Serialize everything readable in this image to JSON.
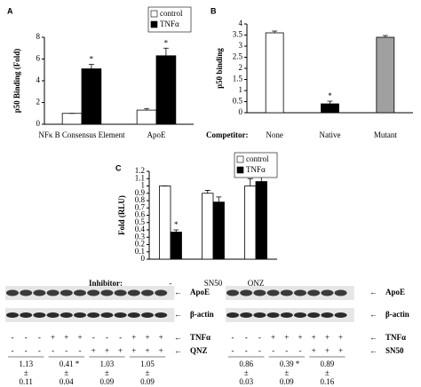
{
  "chart_data": [
    {
      "type": "bar",
      "label": "A",
      "ylabel": "p50 Binding (Fold)",
      "categories": [
        "NFκ B Consensus Element",
        "ApoE"
      ],
      "series": [
        {
          "name": "control",
          "color": "#ffffff",
          "values": [
            1.0,
            1.3
          ],
          "errors": [
            0,
            0.15
          ],
          "markers": [
            null,
            null
          ]
        },
        {
          "name": "TNFα",
          "color": "#000000",
          "values": [
            5.1,
            6.3
          ],
          "errors": [
            0.4,
            0.7
          ],
          "markers": [
            "*",
            "*"
          ]
        }
      ],
      "ylim": [
        0,
        8
      ],
      "yticks": [
        0,
        2,
        4,
        6,
        8
      ],
      "legend": "top-right"
    },
    {
      "type": "bar",
      "label": "B",
      "ylabel": "p50 binding",
      "xlabel": "Competitor:",
      "categories": [
        "None",
        "Native",
        "Mutant"
      ],
      "series": [
        {
          "colors": [
            "#ffffff",
            "#000000",
            "#a0a0a0"
          ],
          "values": [
            3.6,
            0.4,
            3.4
          ],
          "errors": [
            0.08,
            0.12,
            0.08
          ],
          "markers": [
            null,
            "*",
            null
          ]
        }
      ],
      "ylim": [
        0,
        4
      ],
      "yticks": [
        0,
        0.5,
        1,
        1.5,
        2,
        2.5,
        3,
        3.5,
        4
      ]
    },
    {
      "type": "bar",
      "label": "C",
      "ylabel": "Fold (RLU)",
      "xlabel": "Inhibitor:",
      "categories": [
        "-",
        "SN50",
        "QNZ"
      ],
      "series": [
        {
          "name": "control",
          "color": "#ffffff",
          "values": [
            1.0,
            0.9,
            1.0
          ],
          "errors": [
            0,
            0.04,
            0.1
          ],
          "markers": [
            null,
            null,
            null
          ]
        },
        {
          "name": "TNFα",
          "color": "#000000",
          "values": [
            0.37,
            0.78,
            1.06
          ],
          "errors": [
            0.03,
            0.07,
            0.2
          ],
          "markers": [
            "*",
            null,
            null
          ]
        }
      ],
      "ylim": [
        0,
        1.2
      ],
      "yticks": [
        0,
        0.1,
        0.2,
        0.3,
        0.4,
        0.5,
        0.6,
        0.7,
        0.8,
        0.9,
        1,
        1.1,
        1.2
      ],
      "legend": "top-right"
    }
  ],
  "blot": {
    "label": "D",
    "left": {
      "bands": [
        "ApoE",
        "β-actin"
      ],
      "rows": [
        {
          "name": "TNFα",
          "signs": [
            "-",
            "-",
            "-",
            "+",
            "+",
            "+",
            "-",
            "-",
            "-",
            "+",
            "+",
            "+"
          ]
        },
        {
          "name": "QNZ",
          "signs": [
            "-",
            "-",
            "-",
            "-",
            "-",
            "-",
            "+",
            "+",
            "+",
            "+",
            "+",
            "+"
          ]
        }
      ],
      "means": [
        1.13,
        0.41,
        1.03,
        1.05
      ],
      "sig": [
        null,
        "*",
        null,
        null
      ],
      "pm": "±",
      "sds": [
        0.11,
        0.04,
        0.09,
        0.09
      ]
    },
    "right": {
      "bands": [
        "ApoE",
        "β-actin"
      ],
      "rows": [
        {
          "name": "TNFα",
          "signs": [
            "-",
            "-",
            "-",
            "+",
            "+",
            "+",
            "+",
            "+",
            "+"
          ]
        },
        {
          "name": "SN50",
          "signs": [
            "-",
            "-",
            "-",
            "-",
            "-",
            "-",
            "+",
            "+",
            "+"
          ]
        }
      ],
      "means": [
        0.86,
        0.39,
        0.89
      ],
      "sig": [
        null,
        "*",
        null
      ],
      "pm": "±",
      "sds": [
        0.03,
        0.09,
        0.16
      ]
    }
  }
}
